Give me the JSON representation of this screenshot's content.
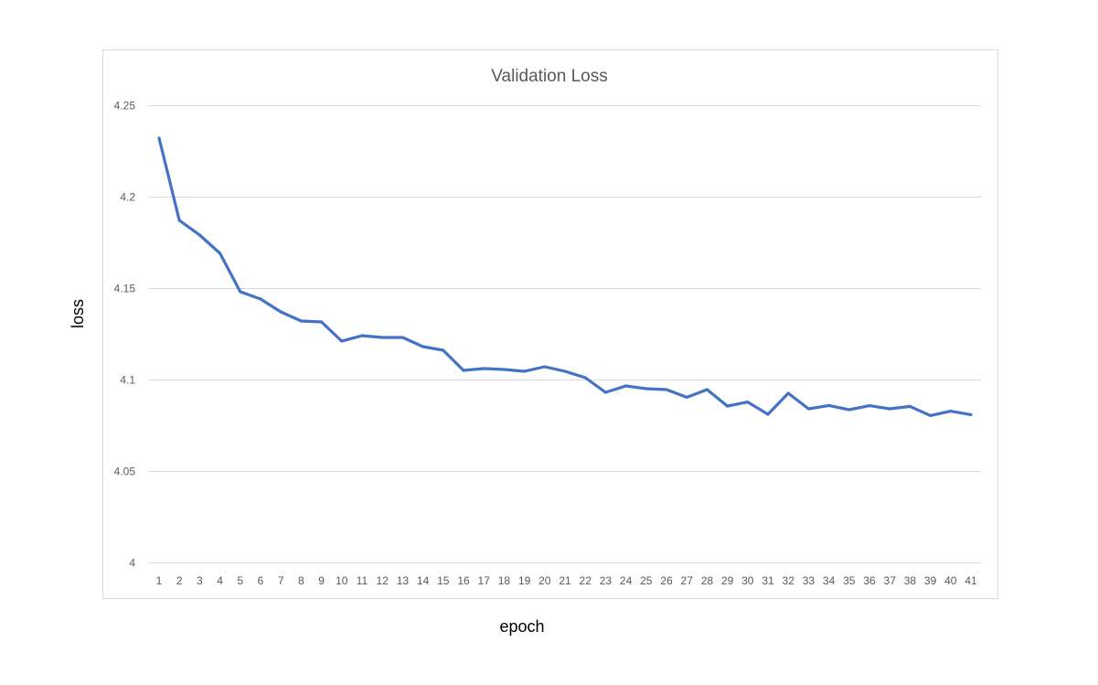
{
  "chart_data": {
    "type": "line",
    "title": "Validation Loss",
    "xlabel": "epoch",
    "ylabel": "loss",
    "categories": [
      "1",
      "2",
      "3",
      "4",
      "5",
      "6",
      "7",
      "8",
      "9",
      "10",
      "11",
      "12",
      "13",
      "14",
      "15",
      "16",
      "17",
      "18",
      "19",
      "20",
      "21",
      "22",
      "23",
      "24",
      "25",
      "26",
      "27",
      "28",
      "29",
      "30",
      "31",
      "32",
      "33",
      "34",
      "35",
      "36",
      "37",
      "38",
      "39",
      "40",
      "41"
    ],
    "series": [
      {
        "color": "#4472C4",
        "values": [
          4.232,
          4.187,
          4.179,
          4.169,
          4.148,
          4.144,
          4.137,
          4.132,
          4.1315,
          4.121,
          4.124,
          4.123,
          4.123,
          4.118,
          4.116,
          4.105,
          4.106,
          4.1055,
          4.1045,
          4.107,
          4.1045,
          4.101,
          4.093,
          4.0965,
          4.095,
          4.0945,
          4.0903,
          4.0945,
          4.0855,
          4.0877,
          4.081,
          4.0925,
          4.084,
          4.0858,
          4.0835,
          4.0857,
          4.084,
          4.0853,
          4.0803,
          4.0827,
          4.0808
        ]
      }
    ],
    "yticks": [
      "4",
      "4.05",
      "4.1",
      "4.15",
      "4.2",
      "4.25"
    ],
    "ylim": [
      4,
      4.25
    ],
    "grid": true,
    "legend": "none"
  }
}
